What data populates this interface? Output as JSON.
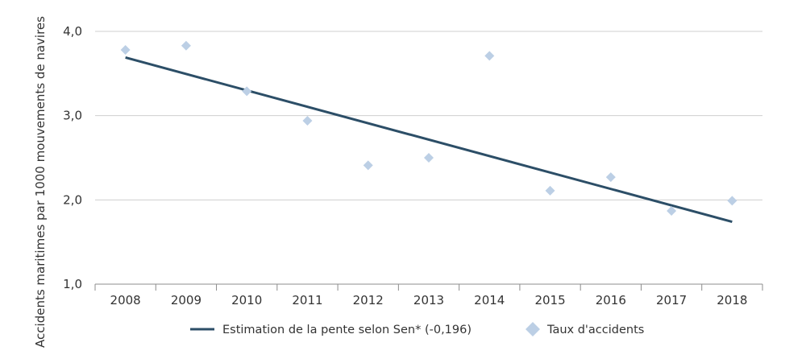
{
  "chart_data": {
    "type": "scatter",
    "ylabel": "Accidents maritimes par 1000 mouvements de navires",
    "ylim": [
      1.0,
      4.0
    ],
    "y_ticks": [
      1.0,
      2.0,
      3.0,
      4.0
    ],
    "y_tick_labels": [
      "1,0",
      "2,0",
      "3,0",
      "4,0"
    ],
    "categories": [
      "2008",
      "2009",
      "2010",
      "2011",
      "2012",
      "2013",
      "2014",
      "2015",
      "2016",
      "2017",
      "2018"
    ],
    "grid": "horizontal",
    "legend_position": "bottom",
    "series": [
      {
        "name": "Estimation de la pente selon Sen* (-0,196)",
        "kind": "line",
        "color": "#2c4e67",
        "start": {
          "x": "2008",
          "y": 3.69
        },
        "end": {
          "x": "2018",
          "y": 1.74
        },
        "slope": -0.196
      },
      {
        "name": "Taux d'accidents",
        "kind": "scatter",
        "marker": "diamond",
        "color": "#bccfe5",
        "values": [
          3.78,
          3.83,
          3.29,
          2.94,
          2.41,
          2.5,
          3.71,
          2.11,
          2.27,
          1.87,
          1.99
        ]
      }
    ]
  }
}
